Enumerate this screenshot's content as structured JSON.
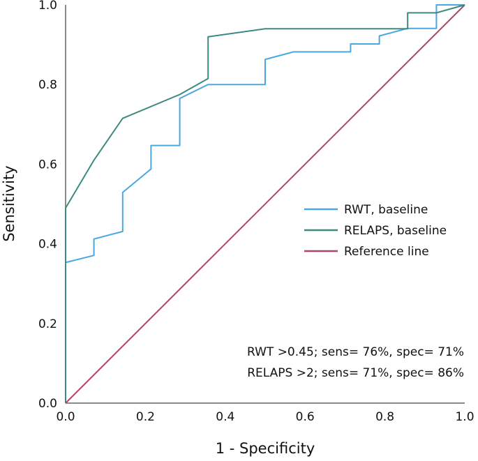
{
  "chart_data": {
    "type": "line",
    "title": "",
    "xlabel": "1 - Specificity",
    "ylabel": "Sensitivity",
    "xlim": [
      0,
      1
    ],
    "ylim": [
      0,
      1
    ],
    "xticks": [
      "0.0",
      "0.2",
      "0.4",
      "0.6",
      "0.8",
      "1.0"
    ],
    "yticks": [
      "0.0",
      "0.2",
      "0.4",
      "0.6",
      "0.8",
      "1.0"
    ],
    "xtick_values": [
      0,
      0.2,
      0.4,
      0.6,
      0.8,
      1.0
    ],
    "ytick_values": [
      0,
      0.2,
      0.4,
      0.6,
      0.8,
      1.0
    ],
    "grid": false,
    "legend_position": "center-right",
    "series": [
      {
        "name": "RWT, baseline",
        "color": "#4aa8e0",
        "x": [
          0,
          0,
          0.071,
          0.071,
          0.143,
          0.143,
          0.214,
          0.214,
          0.286,
          0.286,
          0.357,
          0.5,
          0.5,
          0.571,
          0.714,
          0.714,
          0.786,
          0.786,
          0.857,
          0.929,
          0.929,
          1.0
        ],
        "y": [
          0,
          0.353,
          0.371,
          0.412,
          0.431,
          0.529,
          0.588,
          0.647,
          0.647,
          0.765,
          0.8,
          0.8,
          0.863,
          0.882,
          0.882,
          0.902,
          0.902,
          0.922,
          0.941,
          0.941,
          1.0,
          1.0
        ]
      },
      {
        "name": "RELAPS, baseline",
        "color": "#3d8a80",
        "x": [
          0,
          0,
          0.071,
          0.143,
          0.286,
          0.357,
          0.357,
          0.5,
          0.857,
          0.857,
          0.929,
          1.0
        ],
        "y": [
          0,
          0.49,
          0.61,
          0.715,
          0.775,
          0.815,
          0.92,
          0.94,
          0.94,
          0.98,
          0.98,
          1.0
        ]
      },
      {
        "name": "Reference line",
        "color": "#b0456a",
        "x": [
          0,
          1
        ],
        "y": [
          0,
          1
        ]
      }
    ],
    "annotations": [
      "RWT >0.45; sens= 76%, spec= 71%",
      "RELAPS >2; sens= 71%, spec= 86%"
    ]
  }
}
